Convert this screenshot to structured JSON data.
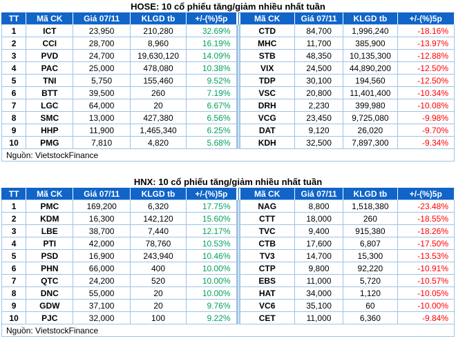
{
  "colors": {
    "header_bg": "#1164C8",
    "grid_border": "#9DC3E6",
    "gain_green": "#00A25C",
    "loss_red": "#FF0000"
  },
  "chart_data": [
    {
      "type": "table",
      "title": "HOSE: 10 cổ phiếu tăng/giảm nhiều nhất tuần",
      "source": "Nguồn: VietstockFinance",
      "columns": [
        "TT",
        "Mã CK",
        "Giá 07/11",
        "KLGD tb",
        "+/-(%)5p",
        "Mã CK",
        "Giá 07/11",
        "KLGD tb",
        "+/-(%)5p"
      ],
      "rows": [
        [
          "1",
          "ICT",
          "23,950",
          "210,280",
          "32.69%",
          "CTD",
          "84,700",
          "1,996,240",
          "-18.16%"
        ],
        [
          "2",
          "CCI",
          "28,700",
          "8,960",
          "16.19%",
          "MHC",
          "11,700",
          "385,900",
          "-13.97%"
        ],
        [
          "3",
          "PVD",
          "24,700",
          "19,630,120",
          "14.09%",
          "STB",
          "48,350",
          "10,135,300",
          "-12.88%"
        ],
        [
          "4",
          "PAC",
          "25,000",
          "478,080",
          "10.38%",
          "VIX",
          "24,500",
          "44,890,200",
          "-12.50%"
        ],
        [
          "5",
          "TNI",
          "5,750",
          "155,460",
          "9.52%",
          "TDP",
          "30,100",
          "194,560",
          "-12.50%"
        ],
        [
          "6",
          "BTT",
          "39,500",
          "260",
          "7.19%",
          "VSC",
          "20,800",
          "11,401,400",
          "-10.34%"
        ],
        [
          "7",
          "LGC",
          "64,000",
          "20",
          "6.67%",
          "DRH",
          "2,230",
          "399,980",
          "-10.08%"
        ],
        [
          "8",
          "SMC",
          "13,000",
          "427,380",
          "6.56%",
          "VCG",
          "23,450",
          "9,725,080",
          "-9.98%"
        ],
        [
          "9",
          "HHP",
          "11,900",
          "1,465,340",
          "6.25%",
          "DAT",
          "9,120",
          "26,020",
          "-9.70%"
        ],
        [
          "10",
          "PMG",
          "7,810",
          "4,820",
          "5.68%",
          "KDH",
          "32,500",
          "7,897,300",
          "-9.34%"
        ]
      ]
    },
    {
      "type": "table",
      "title": "HNX: 10 cổ phiếu tăng/giảm nhiều nhất tuần",
      "source": "Nguồn: VietstockFinance",
      "columns": [
        "TT",
        "Mã CK",
        "Giá 07/11",
        "KLGD tb",
        "+/-(%)5p",
        "Mã CK",
        "Giá 07/11",
        "KLGD tb",
        "+/-(%)5p"
      ],
      "rows": [
        [
          "1",
          "PMC",
          "169,200",
          "6,320",
          "17.75%",
          "NAG",
          "8,800",
          "1,518,380",
          "-23.48%"
        ],
        [
          "2",
          "KDM",
          "16,300",
          "142,120",
          "15.60%",
          "CTT",
          "18,000",
          "260",
          "-18.55%"
        ],
        [
          "3",
          "LBE",
          "38,700",
          "7,440",
          "12.17%",
          "TVC",
          "9,400",
          "915,380",
          "-18.26%"
        ],
        [
          "4",
          "PTI",
          "42,000",
          "78,760",
          "10.53%",
          "CTB",
          "17,600",
          "6,807",
          "-17.50%"
        ],
        [
          "5",
          "PSD",
          "16,900",
          "243,940",
          "10.46%",
          "TV3",
          "14,700",
          "15,300",
          "-13.53%"
        ],
        [
          "6",
          "PHN",
          "66,000",
          "400",
          "10.00%",
          "CTP",
          "9,800",
          "92,220",
          "-10.91%"
        ],
        [
          "7",
          "QTC",
          "24,200",
          "520",
          "10.00%",
          "EBS",
          "11,000",
          "5,720",
          "-10.57%"
        ],
        [
          "8",
          "DNC",
          "55,000",
          "20",
          "10.00%",
          "HAT",
          "34,000",
          "1,120",
          "-10.05%"
        ],
        [
          "9",
          "GDW",
          "37,100",
          "20",
          "9.76%",
          "VC6",
          "35,100",
          "60",
          "-10.00%"
        ],
        [
          "10",
          "PJC",
          "32,000",
          "100",
          "9.22%",
          "CET",
          "11,000",
          "6,360",
          "-9.84%"
        ]
      ]
    }
  ]
}
